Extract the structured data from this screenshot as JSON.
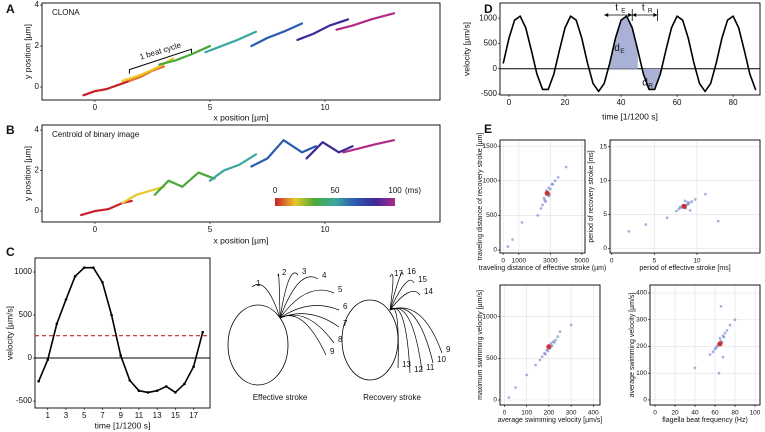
{
  "chart_data": [
    {
      "type": "line",
      "panel_label": "A",
      "title": "CLONA",
      "xlabel": "x position [µm]",
      "ylabel": "y position [µm]",
      "xlim": [
        -2.3,
        15.0
      ],
      "ylim": [
        -0.63,
        4.1
      ],
      "xticks": [
        0,
        5,
        10
      ],
      "yticks": [
        0,
        2,
        4
      ],
      "grid": false,
      "annotation": "1 beat cycle",
      "series": [
        {
          "color": "#c8202a",
          "x": [
            -0.5,
            0,
            0.5,
            1,
            1.5
          ],
          "values": [
            -0.4,
            -0.2,
            -0.1,
            0.1,
            0.3
          ]
        },
        {
          "color": "#e8702a",
          "x": [
            1.5,
            2,
            2.5,
            3
          ],
          "values": [
            0.3,
            0.5,
            0.8,
            1.0
          ]
        },
        {
          "color": "#e8c82a",
          "x": [
            1.2,
            2,
            2.8,
            3.4
          ],
          "values": [
            0.3,
            0.6,
            1.0,
            1.4
          ]
        },
        {
          "color": "#4aa83a",
          "x": [
            2.8,
            3.5,
            4.2,
            5
          ],
          "values": [
            1.1,
            1.3,
            1.6,
            2.0
          ]
        },
        {
          "color": "#3aa8a0",
          "x": [
            4.8,
            5.5,
            6.2,
            7
          ],
          "values": [
            1.7,
            2.0,
            2.3,
            2.7
          ]
        },
        {
          "color": "#2a5ab0",
          "x": [
            6.8,
            7.5,
            8.2,
            9
          ],
          "values": [
            2.0,
            2.4,
            2.7,
            3.1
          ]
        },
        {
          "color": "#3a2a98",
          "x": [
            8.8,
            9.5,
            10.2,
            11
          ],
          "values": [
            2.3,
            2.6,
            3.0,
            3.3
          ]
        },
        {
          "color": "#b02a88",
          "x": [
            10.5,
            11.2,
            12,
            13
          ],
          "values": [
            2.8,
            3.0,
            3.3,
            3.6
          ]
        }
      ]
    },
    {
      "type": "line",
      "panel_label": "B",
      "title": "Centroid of binary image",
      "xlabel": "x position [µm]",
      "ylabel": "y position [µm]",
      "xlim": [
        -2.3,
        15.0
      ],
      "ylim": [
        -0.54,
        4.25
      ],
      "xticks": [
        0,
        5,
        10
      ],
      "yticks": [
        0,
        2,
        4
      ],
      "grid": false,
      "colorbar": {
        "colors": [
          "#c8202a",
          "#e8c82a",
          "#4aa83a",
          "#3aa8a0",
          "#2a5ab0",
          "#3a2a98",
          "#b02a88"
        ],
        "ticks": [
          0,
          50,
          100
        ],
        "unit": "(ms)"
      },
      "series": [
        {
          "color": "#c8202a",
          "x": [
            -0.6,
            0,
            0.6,
            1.2,
            1.6
          ],
          "values": [
            -0.2,
            0,
            0.1,
            0.4,
            0.5
          ]
        },
        {
          "color": "#e8c82a",
          "x": [
            1.2,
            1.8,
            2.4,
            3
          ],
          "values": [
            0.4,
            0.8,
            1.0,
            1.2
          ]
        },
        {
          "color": "#4aa83a",
          "x": [
            2.6,
            3.2,
            3.8,
            4.5,
            5.2
          ],
          "values": [
            0.8,
            1.5,
            1.2,
            1.9,
            1.6
          ]
        },
        {
          "color": "#3aa8a0",
          "x": [
            5,
            5.6,
            6.3,
            7
          ],
          "values": [
            1.5,
            2.0,
            2.3,
            2.8
          ]
        },
        {
          "color": "#2a5ab0",
          "x": [
            6.8,
            7.5,
            8.2,
            9,
            9.6
          ],
          "values": [
            2.2,
            2.6,
            3.5,
            2.9,
            3.2
          ]
        },
        {
          "color": "#3a2a98",
          "x": [
            9.2,
            9.9,
            10.6,
            11.2
          ],
          "values": [
            2.6,
            3.4,
            2.9,
            3.2
          ]
        },
        {
          "color": "#b02a88",
          "x": [
            10.8,
            11.5,
            12.2,
            13
          ],
          "values": [
            2.9,
            3.1,
            3.3,
            3.5
          ]
        }
      ]
    },
    {
      "type": "line",
      "panel_label": "C",
      "xlabel": "time [1/1200 s]",
      "ylabel": "velocity [µm/s]",
      "xlim": [
        -0.4,
        18.8
      ],
      "ylim": [
        -581,
        1163
      ],
      "xticks": [
        1,
        3,
        5,
        7,
        9,
        11,
        13,
        15,
        17
      ],
      "yticks": [
        -500,
        0,
        500,
        1000
      ],
      "grid": false,
      "zero_line": true,
      "markers": true,
      "threshold": 260,
      "threshold_color": "#c0272d",
      "x": [
        0,
        1,
        2,
        3,
        4,
        5,
        6,
        7,
        8,
        9,
        10,
        11,
        12,
        13,
        14,
        15,
        16,
        17,
        18
      ],
      "series": [
        {
          "color": "#000000",
          "values": [
            -270,
            -20,
            400,
            680,
            950,
            1050,
            1050,
            880,
            500,
            30,
            -260,
            -380,
            -400,
            -380,
            -330,
            -400,
            -300,
            -100,
            300
          ]
        }
      ],
      "stroke_diagram": {
        "effective": {
          "title": "Effective stroke",
          "labels": [
            1,
            2,
            3,
            4,
            5,
            6,
            7,
            8,
            9
          ]
        },
        "recovery": {
          "title": "Recovery stroke",
          "labels": [
            17,
            16,
            15,
            14,
            13,
            12,
            11,
            10,
            9
          ]
        }
      }
    },
    {
      "type": "line",
      "panel_label": "D",
      "xlabel": "time [1/1200 s]",
      "ylabel": "velocity [µm/s]",
      "xlim": [
        -3.2,
        89.6
      ],
      "ylim": [
        -520,
        1300
      ],
      "xticks": [
        0,
        20,
        40,
        60,
        80
      ],
      "yticks": [
        -500,
        0,
        500,
        1000
      ],
      "grid": false,
      "zero_line": true,
      "shade_color": "#a9b2d6",
      "annotations": [
        {
          "text": "t",
          "sub": "E"
        },
        {
          "text": "t",
          "sub": "R"
        },
        {
          "text": "d",
          "sub": "E"
        },
        {
          "text": "d",
          "sub": "R"
        }
      ],
      "x": [
        -2,
        0,
        2,
        4,
        6,
        8,
        10,
        12,
        14,
        16,
        18,
        20,
        22,
        24,
        26,
        28,
        30,
        32,
        34,
        36,
        38,
        40,
        42,
        44,
        46,
        48,
        50,
        52,
        54,
        56,
        58,
        60,
        62,
        64,
        66,
        68,
        70,
        72,
        74,
        76,
        78,
        80,
        82,
        84,
        86,
        88
      ],
      "series": [
        {
          "color": "#000000",
          "values": [
            116,
            602,
            960,
            1040,
            808,
            362,
            -110,
            -410,
            -410,
            -110,
            362,
            808,
            1040,
            960,
            602,
            116,
            -292,
            -450,
            -292,
            116,
            602,
            960,
            1040,
            808,
            362,
            -110,
            -410,
            -410,
            -110,
            362,
            808,
            1040,
            960,
            602,
            116,
            -292,
            -450,
            -292,
            116,
            602,
            960,
            1040,
            808,
            362,
            -110,
            -410
          ]
        }
      ]
    },
    {
      "type": "scatter",
      "panel_label": "E",
      "xlabel": "traveling distance of effective stroke (µm)",
      "ylabel": "traveling distance of recovery stroke [µm]",
      "xlim": [
        -200,
        5200
      ],
      "ylim": [
        -43,
        1590
      ],
      "xticks": [
        0,
        1000,
        3000,
        5000
      ],
      "yticks": [
        0,
        500,
        1000,
        1500
      ],
      "grid": true,
      "series": [
        {
          "color": "#6b7fc9",
          "x": [
            2600,
            2900,
            3100,
            2700,
            2500,
            3000,
            2800,
            3300,
            2400,
            2900,
            2650,
            3150,
            2750,
            2950,
            2200,
            3500,
            1200,
            600,
            4000,
            300
          ],
          "values": [
            750,
            900,
            950,
            700,
            650,
            880,
            820,
            1000,
            600,
            780,
            720,
            950,
            860,
            800,
            500,
            1050,
            400,
            150,
            1200,
            50
          ]
        },
        {
          "color": "#cc2222",
          "x": [
            2800
          ],
          "values": [
            820
          ]
        }
      ]
    },
    {
      "type": "scatter",
      "xlabel": "period of effective stroke [ms]",
      "ylabel": "period of recovery stroke [ms]",
      "xlim": [
        -0.2,
        17.4
      ],
      "ylim": [
        -0.7,
        16
      ],
      "xticks": [
        0,
        5,
        10
      ],
      "yticks": [
        0,
        5,
        10,
        15
      ],
      "grid": true,
      "series": [
        {
          "color": "#6b7fc9",
          "x": [
            8.2,
            8.8,
            9.1,
            7.9,
            8.5,
            9.4,
            8.0,
            8.7,
            9.0,
            8.3,
            7.6,
            9.8,
            6.5,
            11,
            4,
            8.6,
            2,
            12.5,
            9.2,
            8.9
          ],
          "values": [
            6.0,
            6.4,
            6.7,
            5.8,
            6.2,
            6.9,
            6.1,
            5.9,
            6.5,
            6.3,
            5.5,
            7.2,
            4.5,
            8,
            3.5,
            7,
            2.5,
            4,
            5.6,
            6.8
          ]
        },
        {
          "color": "#cc2222",
          "x": [
            8.5
          ],
          "values": [
            6.2
          ]
        }
      ]
    },
    {
      "type": "scatter",
      "xlabel": "average swimming velocity [µm/s]",
      "ylabel": "maximum swimming velocity [µm/s]",
      "xlim": [
        -20,
        430
      ],
      "ylim": [
        -60,
        1380
      ],
      "xticks": [
        0,
        100,
        200,
        300,
        400
      ],
      "yticks": [
        0,
        500,
        1000
      ],
      "grid": true,
      "series": [
        {
          "color": "#6b7fc9",
          "x": [
            190,
            210,
            230,
            180,
            200,
            220,
            170,
            240,
            160,
            205,
            215,
            195,
            250,
            140,
            100,
            50,
            20,
            300,
            185,
            225
          ],
          "values": [
            600,
            680,
            720,
            560,
            640,
            700,
            520,
            760,
            480,
            620,
            650,
            590,
            820,
            420,
            300,
            150,
            30,
            900,
            550,
            690
          ]
        },
        {
          "color": "#cc2222",
          "x": [
            200
          ],
          "values": [
            640
          ]
        }
      ]
    },
    {
      "type": "scatter",
      "xlabel": "flagella beat frequency (Hz)",
      "ylabel": "average swimming velocity [µm/s]",
      "xlim": [
        -5,
        105
      ],
      "ylim": [
        -19,
        430
      ],
      "xticks": [
        0,
        20,
        40,
        60,
        80,
        100
      ],
      "yticks": [
        0,
        100,
        200,
        300,
        400
      ],
      "grid": true,
      "series": [
        {
          "color": "#6b7fc9",
          "x": [
            62,
            66,
            68,
            60,
            64,
            70,
            58,
            72,
            65,
            63,
            67,
            61,
            69,
            55,
            75,
            40,
            80,
            66,
            64,
            68
          ],
          "values": [
            200,
            220,
            240,
            190,
            210,
            250,
            180,
            260,
            230,
            205,
            215,
            195,
            235,
            170,
            280,
            120,
            300,
            350,
            100,
            160
          ]
        },
        {
          "color": "#cc2222",
          "x": [
            65
          ],
          "values": [
            210
          ]
        }
      ]
    }
  ]
}
